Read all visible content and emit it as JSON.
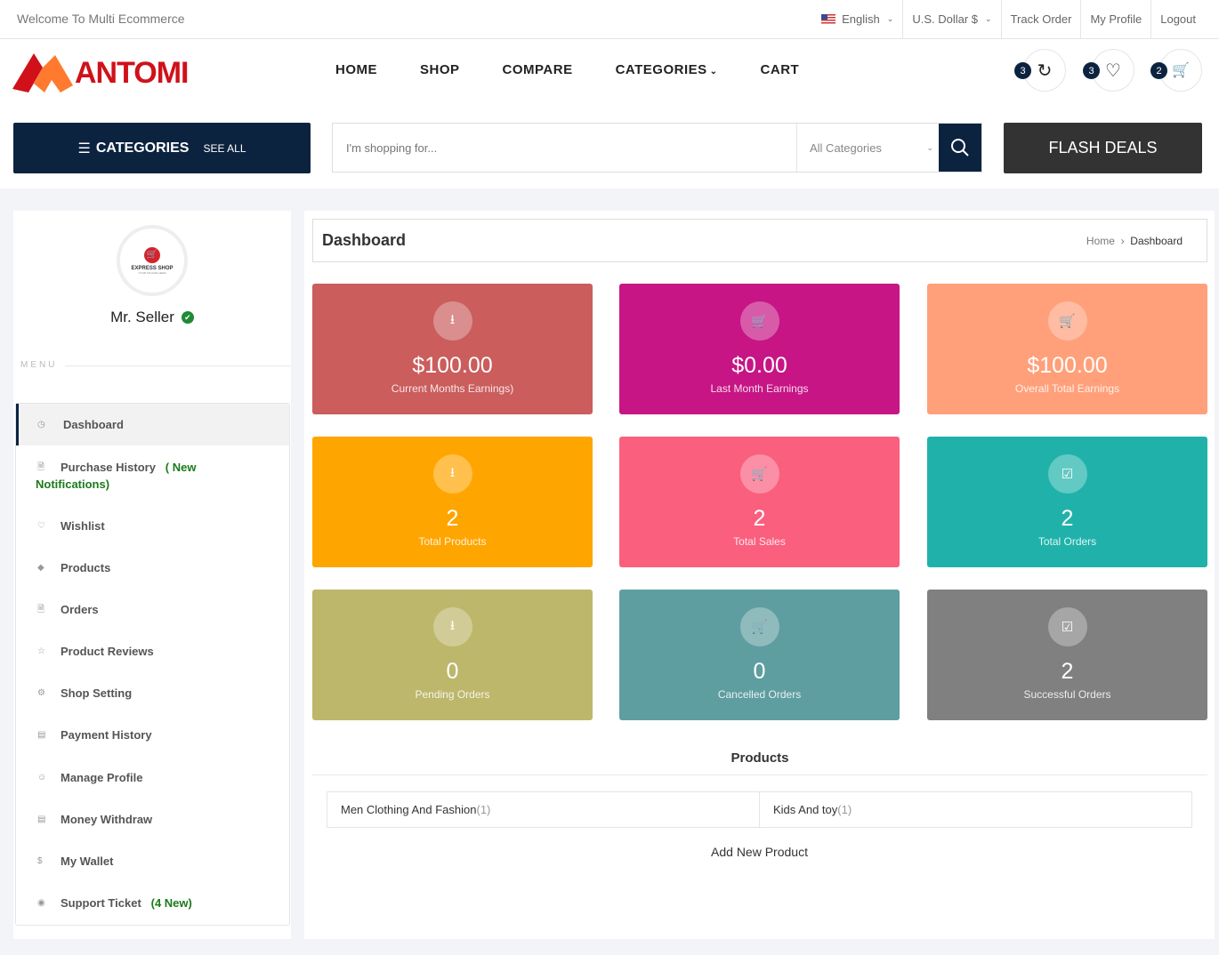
{
  "topbar": {
    "welcome": "Welcome To Multi Ecommerce",
    "language": "English",
    "currency": "U.S. Dollar $",
    "track_order": "Track Order",
    "my_profile": "My Profile",
    "logout": "Logout"
  },
  "header": {
    "logo": "ANTOMI",
    "nav": [
      "HOME",
      "SHOP",
      "COMPARE",
      "CATEGORIES",
      "CART"
    ],
    "compare_count": "3",
    "wishlist_count": "3",
    "cart_count": "2"
  },
  "searchbar": {
    "categories_label": "CATEGORIES",
    "see_all": "SEE ALL",
    "placeholder": "I'm shopping for...",
    "category_select": "All Categories",
    "flash_deals": "FLASH DEALS"
  },
  "sidebar": {
    "shop_logo": "EXPRESS SHOP",
    "shop_tagline": "YOUR TAGLINE HERE",
    "seller_name": "Mr. Seller",
    "menu_label": "MENU",
    "items": [
      {
        "label": "Dashboard",
        "icon": "dashboard-icon"
      },
      {
        "label": "Purchase History",
        "note": "( New Notifications)",
        "icon": "file-icon"
      },
      {
        "label": "Wishlist",
        "icon": "heart-icon"
      },
      {
        "label": "Products",
        "icon": "diamond-icon"
      },
      {
        "label": "Orders",
        "icon": "file-icon"
      },
      {
        "label": "Product Reviews",
        "icon": "star-icon"
      },
      {
        "label": "Shop Setting",
        "icon": "gear-icon"
      },
      {
        "label": "Payment History",
        "icon": "money-icon"
      },
      {
        "label": "Manage Profile",
        "icon": "user-icon"
      },
      {
        "label": "Money Withdraw",
        "icon": "money-icon"
      },
      {
        "label": "My Wallet",
        "icon": "dollar-icon"
      },
      {
        "label": "Support Ticket",
        "note": "(4 New)",
        "icon": "support-icon"
      }
    ]
  },
  "main": {
    "title": "Dashboard",
    "breadcrumb": [
      "Home",
      "Dashboard"
    ],
    "cards": [
      {
        "value": "$100.00",
        "label": "Current Months Earnings)",
        "color": "#cb5d5d",
        "icon": "upload-icon"
      },
      {
        "value": "$0.00",
        "label": "Last Month Earnings",
        "color": "#c71585",
        "icon": "cart-icon"
      },
      {
        "value": "$100.00",
        "label": "Overall Total Earnings",
        "color": "#ffa07a",
        "icon": "cart-icon"
      },
      {
        "value": "2",
        "label": "Total Products",
        "color": "#ffa500",
        "icon": "upload-icon"
      },
      {
        "value": "2",
        "label": "Total Sales",
        "color": "#fa5f7e",
        "icon": "cart-icon"
      },
      {
        "value": "2",
        "label": "Total Orders",
        "color": "#20b2aa",
        "icon": "check-icon"
      },
      {
        "value": "0",
        "label": "Pending Orders",
        "color": "#bdb76b",
        "icon": "upload-icon"
      },
      {
        "value": "0",
        "label": "Cancelled Orders",
        "color": "#5f9ea0",
        "icon": "cart-icon"
      },
      {
        "value": "2",
        "label": "Successful Orders",
        "color": "#808080",
        "icon": "check-icon"
      }
    ],
    "products_heading": "Products",
    "product_categories": [
      {
        "name": "Men Clothing And Fashion",
        "count": "(1)"
      },
      {
        "name": "Kids And toy",
        "count": "(1)"
      }
    ],
    "add_product": "Add New Product"
  }
}
